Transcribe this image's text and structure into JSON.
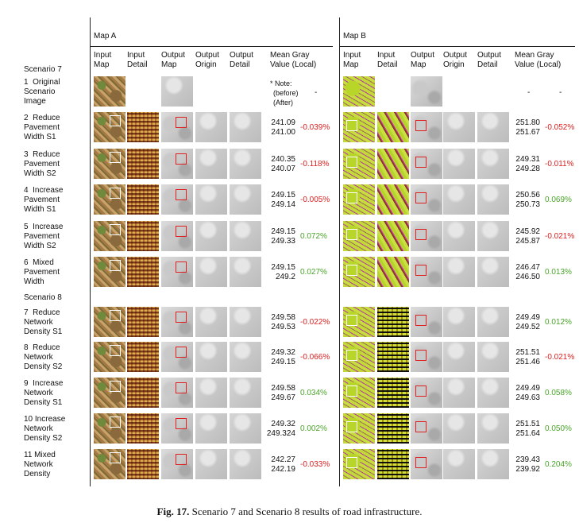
{
  "headers": {
    "map_a": "Map A",
    "map_b": "Map B",
    "cols_a": [
      [
        "Input",
        "Map"
      ],
      [
        "Input",
        "Detail"
      ],
      [
        "Output",
        "Map"
      ],
      [
        "Output",
        "Origin"
      ],
      [
        "Output",
        "Detail"
      ],
      [
        "Mean Gray",
        "Value (Local)"
      ]
    ],
    "cols_b": [
      [
        "Input",
        "Map"
      ],
      [
        "Input",
        "Detail"
      ],
      [
        "Output",
        "Map"
      ],
      [
        "Output",
        "Origin"
      ],
      [
        "Output",
        "Detail"
      ],
      [
        "Mean Gray",
        "Value (Local)"
      ]
    ]
  },
  "scenarios": {
    "s7": "Scenario 7",
    "s8": "Scenario 8"
  },
  "note": {
    "line1": "* Note:",
    "line2": "(before)",
    "line3": "(After)",
    "dash_a": "-",
    "dash_b1": "-",
    "dash_b2": "-"
  },
  "rows": [
    {
      "label": [
        "1  Original",
        "Scenario",
        "Image"
      ]
    },
    {
      "label": [
        "2  Reduce",
        "Pavement",
        "Width S1"
      ],
      "a": [
        "241.09",
        "241.00"
      ],
      "a_pct": "-0.039%",
      "a_sign": "neg",
      "b": [
        "251.80",
        "251.67"
      ],
      "b_pct": "-0.052%",
      "b_sign": "neg"
    },
    {
      "label": [
        "3  Reduce",
        "Pavement",
        "Width S2"
      ],
      "a": [
        "240.35",
        "240.07"
      ],
      "a_pct": "-0.118%",
      "a_sign": "neg",
      "b": [
        "249.31",
        "249.28"
      ],
      "b_pct": "-0.011%",
      "b_sign": "neg"
    },
    {
      "label": [
        "4  Increase",
        "Pavement",
        "Width S1"
      ],
      "a": [
        "249.15",
        "249.14"
      ],
      "a_pct": "-0.005%",
      "a_sign": "neg",
      "b": [
        "250.56",
        "250.73"
      ],
      "b_pct": "0.069%",
      "b_sign": "pos"
    },
    {
      "label": [
        "5  Increase",
        "Pavement",
        "Width S2"
      ],
      "a": [
        "249.15",
        "249.33"
      ],
      "a_pct": "0.072%",
      "a_sign": "pos",
      "b": [
        "245.92",
        "245.87"
      ],
      "b_pct": "-0.021%",
      "b_sign": "neg"
    },
    {
      "label": [
        "6  Mixed",
        "Pavement",
        "Width"
      ],
      "a": [
        "249.15",
        "249.2"
      ],
      "a_pct": "0.027%",
      "a_sign": "pos",
      "b": [
        "246.47",
        "246.50"
      ],
      "b_pct": "0.013%",
      "b_sign": "pos"
    },
    {
      "label": [
        "7  Reduce",
        "Network",
        "Density S1"
      ],
      "a": [
        "249.58",
        "249.53"
      ],
      "a_pct": "-0.022%",
      "a_sign": "neg",
      "b": [
        "249.49",
        "249.52"
      ],
      "b_pct": "0.012%",
      "b_sign": "pos"
    },
    {
      "label": [
        "8  Reduce",
        "Network",
        "Density S2"
      ],
      "a": [
        "249.32",
        "249.15"
      ],
      "a_pct": "-0.066%",
      "a_sign": "neg",
      "b": [
        "251.51",
        "251.46"
      ],
      "b_pct": "-0.021%",
      "b_sign": "neg"
    },
    {
      "label": [
        "9  Increase",
        "Network",
        "Density S1"
      ],
      "a": [
        "249.58",
        "249.67"
      ],
      "a_pct": "0.034%",
      "a_sign": "pos",
      "b": [
        "249.49",
        "249.63"
      ],
      "b_pct": "0.058%",
      "b_sign": "pos"
    },
    {
      "label": [
        "10 Increase",
        "Network",
        "Density S2"
      ],
      "a": [
        "249.32",
        "249.324"
      ],
      "a_pct": "0.002%",
      "a_sign": "pos",
      "b": [
        "251.51",
        "251.64"
      ],
      "b_pct": "0.050%",
      "b_sign": "pos"
    },
    {
      "label": [
        "11 Mixed",
        "Network",
        "Density"
      ],
      "a": [
        "242.27",
        "242.19"
      ],
      "a_pct": "-0.033%",
      "a_sign": "neg",
      "b": [
        "239.43",
        "239.92"
      ],
      "b_pct": "0.204%",
      "b_sign": "pos"
    }
  ],
  "caption": {
    "label": "Fig. 17.",
    "text": "Scenario 7 and Scenario 8 results of road infrastructure."
  },
  "colors": {
    "negative": "#e02020",
    "positive": "#4aa32a"
  }
}
